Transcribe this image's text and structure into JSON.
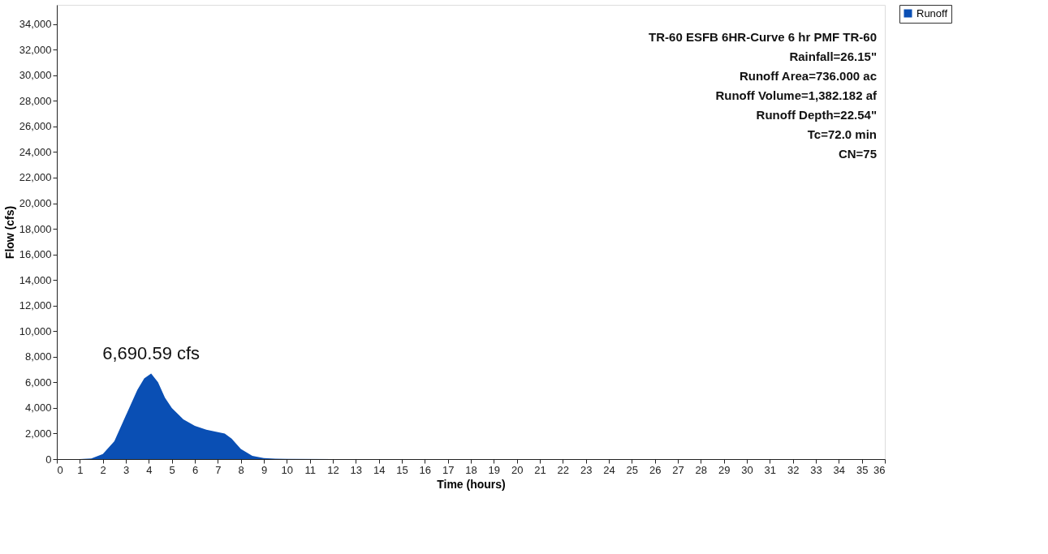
{
  "chart_data": {
    "type": "area",
    "xlabel": "Time (hours)",
    "ylabel": "Flow  (cfs)",
    "x": [
      0,
      1,
      1.5,
      2,
      2.5,
      3,
      3.5,
      3.8,
      4.1,
      4.4,
      4.7,
      5,
      5.5,
      6,
      6.5,
      7,
      7.3,
      7.6,
      8,
      8.5,
      9,
      9.5,
      10,
      12,
      15,
      20,
      25,
      30,
      36
    ],
    "series": [
      {
        "name": "Runoff",
        "color": "#0a4fb4",
        "values": [
          0,
          0,
          50,
          400,
          1400,
          3400,
          5400,
          6300,
          6690.59,
          6000,
          4800,
          4000,
          3100,
          2600,
          2300,
          2100,
          2000,
          1600,
          800,
          250,
          80,
          30,
          10,
          0,
          0,
          0,
          0,
          0,
          0
        ]
      }
    ],
    "xlim": [
      0,
      36
    ],
    "xticks": [
      0,
      1,
      2,
      3,
      4,
      5,
      6,
      7,
      8,
      9,
      10,
      11,
      12,
      13,
      14,
      15,
      16,
      17,
      18,
      19,
      20,
      21,
      22,
      23,
      24,
      25,
      26,
      27,
      28,
      29,
      30,
      31,
      32,
      33,
      34,
      35,
      36
    ],
    "ylim": [
      0,
      35500
    ],
    "yticks": [
      {
        "value": 0,
        "label": "0"
      },
      {
        "value": 2000,
        "label": "2,000"
      },
      {
        "value": 4000,
        "label": "4,000"
      },
      {
        "value": 6000,
        "label": "6,000"
      },
      {
        "value": 8000,
        "label": "8,000"
      },
      {
        "value": 10000,
        "label": "10,000"
      },
      {
        "value": 12000,
        "label": "12,000"
      },
      {
        "value": 14000,
        "label": "14,000"
      },
      {
        "value": 16000,
        "label": "16,000"
      },
      {
        "value": 18000,
        "label": "18,000"
      },
      {
        "value": 20000,
        "label": "20,000"
      },
      {
        "value": 22000,
        "label": "22,000"
      },
      {
        "value": 24000,
        "label": "24,000"
      },
      {
        "value": 26000,
        "label": "26,000"
      },
      {
        "value": 28000,
        "label": "28,000"
      },
      {
        "value": 30000,
        "label": "30,000"
      },
      {
        "value": 32000,
        "label": "32,000"
      },
      {
        "value": 34000,
        "label": "34,000"
      }
    ],
    "annotations": [
      {
        "text": "6,690.59 cfs",
        "x": 4.1,
        "y": 6690.59
      },
      "TR-60 ESFB 6HR-Curve 6 hr PMF TR-60",
      "Rainfall=26.15\"",
      "Runoff Area=736.000 ac",
      "Runoff Volume=1,382.182 af",
      "Runoff Depth=22.54\"",
      "Tc=72.0 min",
      "CN=75"
    ],
    "grid": false,
    "legend": "top right"
  }
}
